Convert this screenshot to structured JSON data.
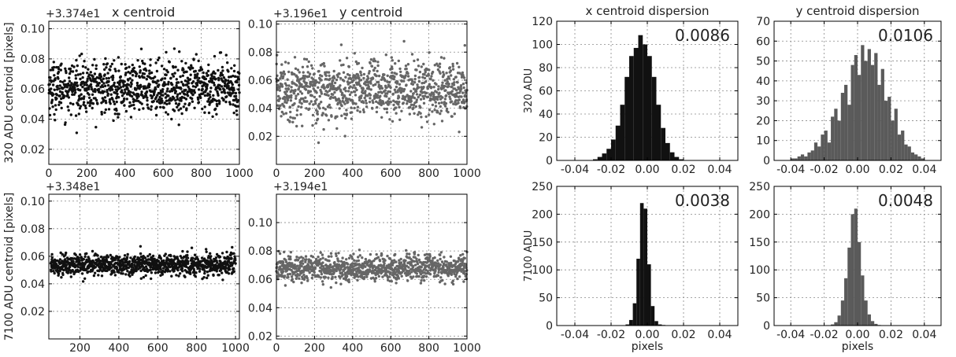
{
  "chart_data": [
    {
      "id": "p1",
      "type": "scatter",
      "title": "x centroid",
      "offset_label": "+3.374e1",
      "ylabel": "320 ADU centroid [pixels]",
      "xlim": [
        0,
        1000
      ],
      "ylim": [
        0.01,
        0.105
      ],
      "xticks": [
        0,
        200,
        400,
        600,
        800,
        1000
      ],
      "yticks": [
        0.02,
        0.04,
        0.06,
        0.08,
        0.1
      ],
      "x_tick_labels": [
        "0",
        "200",
        "400",
        "600",
        "800",
        "1000"
      ],
      "y_tick_labels": [
        "0.02",
        "0.04",
        "0.06",
        "0.08",
        "0.10"
      ],
      "grid": true,
      "color": "#111111",
      "series": [
        {
          "x_range": [
            0,
            1000
          ],
          "n_points": 1000,
          "mean": 0.061,
          "sigma": 0.0086
        }
      ]
    },
    {
      "id": "p2",
      "type": "scatter",
      "title": "y centroid",
      "offset_label": "+3.196e1",
      "ylabel": "",
      "xlim": [
        0,
        1000
      ],
      "ylim": [
        0.0,
        0.102
      ],
      "xticks": [
        0,
        200,
        400,
        600,
        800,
        1000
      ],
      "yticks": [
        0.02,
        0.04,
        0.06,
        0.08,
        0.1
      ],
      "x_tick_labels": [
        "0",
        "200",
        "400",
        "600",
        "800",
        "1000"
      ],
      "y_tick_labels": [
        "0.02",
        "0.04",
        "0.06",
        "0.08",
        "0.10"
      ],
      "grid": true,
      "color": "#666666",
      "series": [
        {
          "x_range": [
            0,
            1000
          ],
          "n_points": 1000,
          "mean": 0.053,
          "sigma": 0.0106
        }
      ]
    },
    {
      "id": "p3",
      "type": "scatter",
      "title": "",
      "offset_label": "+3.348e1",
      "ylabel": "7100 ADU centroid [pixels]",
      "xlim": [
        40,
        1020
      ],
      "ylim": [
        0.0,
        0.105
      ],
      "xticks": [
        200,
        400,
        600,
        800,
        1000
      ],
      "yticks": [
        0.02,
        0.04,
        0.06,
        0.08,
        0.1
      ],
      "x_tick_labels": [
        "200",
        "400",
        "600",
        "800",
        "1000"
      ],
      "y_tick_labels": [
        "0.02",
        "0.04",
        "0.06",
        "0.08",
        "0.10"
      ],
      "grid": true,
      "color": "#111111",
      "series": [
        {
          "x_range": [
            50,
            1000
          ],
          "n_points": 1000,
          "mean": 0.054,
          "sigma": 0.0038
        }
      ]
    },
    {
      "id": "p4",
      "type": "scatter",
      "title": "",
      "offset_label": "+3.194e1",
      "ylabel": "",
      "xlim": [
        0,
        1000
      ],
      "ylim": [
        0.018,
        0.12
      ],
      "xticks": [
        0,
        200,
        400,
        600,
        800,
        1000
      ],
      "yticks": [
        0.02,
        0.04,
        0.06,
        0.08,
        0.1
      ],
      "x_tick_labels": [
        "0",
        "200",
        "400",
        "600",
        "800",
        "1000"
      ],
      "y_tick_labels": [
        "0.02",
        "0.04",
        "0.06",
        "0.08",
        "0.10"
      ],
      "grid": true,
      "color": "#666666",
      "series": [
        {
          "x_range": [
            0,
            1000
          ],
          "n_points": 1000,
          "mean": 0.068,
          "sigma": 0.0048
        }
      ]
    },
    {
      "id": "h1",
      "type": "bar",
      "title": "x centroid dispersion",
      "ylabel": "320 ADU",
      "xlabel": "",
      "annotation": "0.0086",
      "xlim": [
        -0.05,
        0.05
      ],
      "ylim": [
        0,
        120
      ],
      "xticks": [
        -0.04,
        -0.02,
        0.0,
        0.02,
        0.04
      ],
      "yticks": [
        0,
        20,
        40,
        60,
        80,
        100,
        120
      ],
      "x_tick_labels": [
        "-0.04",
        "-0.02",
        "0.00",
        "0.02",
        "0.04"
      ],
      "y_tick_labels": [
        "0",
        "20",
        "40",
        "60",
        "80",
        "100",
        "120"
      ],
      "grid": true,
      "color": "#111111",
      "bin_start": -0.03,
      "bin_width": 0.0025,
      "values": [
        1,
        3,
        6,
        10,
        18,
        30,
        48,
        72,
        90,
        97,
        108,
        100,
        90,
        72,
        48,
        28,
        15,
        7,
        3,
        1
      ]
    },
    {
      "id": "h2",
      "type": "bar",
      "title": "y centroid dispersion",
      "ylabel": "",
      "xlabel": "",
      "annotation": "0.0106",
      "xlim": [
        -0.05,
        0.05
      ],
      "ylim": [
        0,
        70
      ],
      "xticks": [
        -0.04,
        -0.02,
        0.0,
        0.02,
        0.04
      ],
      "yticks": [
        0,
        10,
        20,
        30,
        40,
        50,
        60,
        70
      ],
      "x_tick_labels": [
        "-0.04",
        "-0.02",
        "0.00",
        "0.02",
        "0.04"
      ],
      "y_tick_labels": [
        "0",
        "10",
        "20",
        "30",
        "40",
        "50",
        "60",
        "70"
      ],
      "grid": true,
      "color": "#5a5a5a",
      "bin_start": -0.04,
      "bin_width": 0.002,
      "values": [
        1,
        1,
        2,
        3,
        2,
        4,
        5,
        9,
        7,
        13,
        15,
        9,
        22,
        26,
        20,
        34,
        38,
        28,
        48,
        53,
        43,
        58,
        50,
        56,
        48,
        54,
        38,
        46,
        30,
        32,
        20,
        26,
        13,
        15,
        8,
        7,
        4,
        3,
        2,
        1
      ]
    },
    {
      "id": "h3",
      "type": "bar",
      "title": "",
      "ylabel": "7100 ADU",
      "xlabel": "pixels",
      "annotation": "0.0038",
      "xlim": [
        -0.05,
        0.05
      ],
      "ylim": [
        0,
        250
      ],
      "xticks": [
        -0.04,
        -0.02,
        0.0,
        0.02,
        0.04
      ],
      "yticks": [
        0,
        50,
        100,
        150,
        200,
        250
      ],
      "x_tick_labels": [
        "-0.04",
        "-0.02",
        "0.00",
        "0.02",
        "0.04"
      ],
      "y_tick_labels": [
        "0",
        "50",
        "100",
        "150",
        "200",
        "250"
      ],
      "grid": true,
      "color": "#111111",
      "bin_start": -0.012,
      "bin_width": 0.002,
      "values": [
        2,
        10,
        40,
        120,
        220,
        210,
        110,
        35,
        8,
        2,
        1
      ]
    },
    {
      "id": "h4",
      "type": "bar",
      "title": "",
      "ylabel": "",
      "xlabel": "pixels",
      "annotation": "0.0048",
      "xlim": [
        -0.05,
        0.05
      ],
      "ylim": [
        0,
        250
      ],
      "xticks": [
        -0.04,
        -0.02,
        0.0,
        0.02,
        0.04
      ],
      "yticks": [
        0,
        50,
        100,
        150,
        200,
        250
      ],
      "x_tick_labels": [
        "-0.04",
        "-0.02",
        "0.00",
        "0.02",
        "0.04"
      ],
      "y_tick_labels": [
        "0",
        "50",
        "100",
        "150",
        "200",
        "250"
      ],
      "grid": true,
      "color": "#5a5a5a",
      "bin_start": -0.016,
      "bin_width": 0.002,
      "values": [
        2,
        6,
        18,
        45,
        85,
        140,
        200,
        210,
        150,
        90,
        45,
        20,
        8,
        3,
        1
      ]
    }
  ]
}
